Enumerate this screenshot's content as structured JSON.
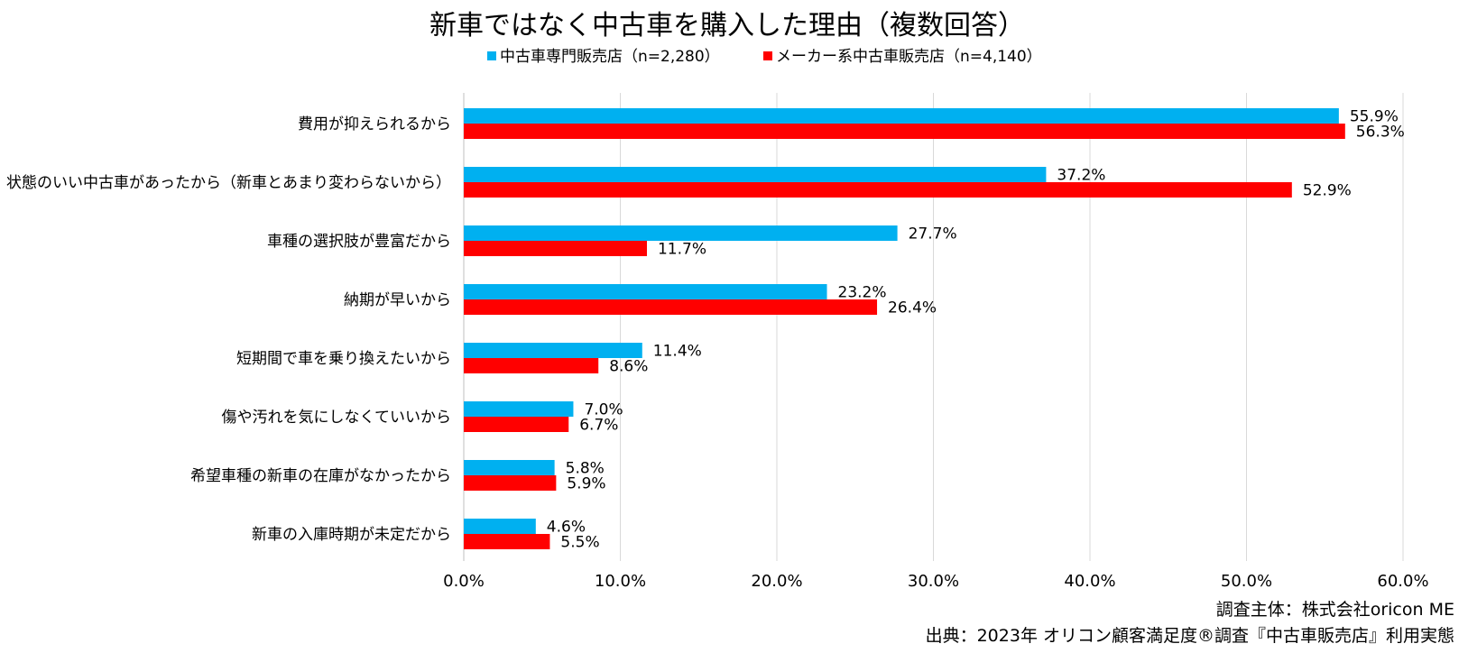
{
  "chart_data": {
    "type": "bar",
    "orientation": "horizontal",
    "title": "新車ではなく中古車を購入した理由（複数回答）",
    "categories": [
      "費用が抑えられるから",
      "状態のいい中古車があったから（新車とあまり変わらないから）",
      "車種の選択肢が豊富だから",
      "納期が早いから",
      "短期間で車を乗り換えたいから",
      "傷や汚れを気にしなくていいから",
      "希望車種の新車の在庫がなかったから",
      "新車の入庫時期が未定だから"
    ],
    "series": [
      {
        "name": "中古車専門販売店（n=2,280）",
        "color": "#00b0f0",
        "values": [
          55.9,
          37.2,
          27.7,
          23.2,
          11.4,
          7.0,
          5.8,
          4.6
        ],
        "labels": [
          "55.9%",
          "37.2%",
          "27.7%",
          "23.2%",
          "11.4%",
          "7.0%",
          "5.8%",
          "4.6%"
        ]
      },
      {
        "name": "メーカー系中古車販売店（n=4,140）",
        "color": "#ff0000",
        "values": [
          56.3,
          52.9,
          11.7,
          26.4,
          8.6,
          6.7,
          5.9,
          5.5
        ],
        "labels": [
          "56.3%",
          "52.9%",
          "11.7%",
          "26.4%",
          "8.6%",
          "6.7%",
          "5.9%",
          "5.5%"
        ]
      }
    ],
    "xlim": [
      0,
      60
    ],
    "xticks": [
      "0.0%",
      "10.0%",
      "20.0%",
      "30.0%",
      "40.0%",
      "50.0%",
      "60.0%"
    ],
    "xlabel": "",
    "ylabel": "",
    "grid": true,
    "legend_position": "top"
  },
  "footer": {
    "survey_entity": "調査主体：株式会社oricon ME",
    "source": "出典：2023年 オリコン顧客満足度®調査『中古車販売店』利用実態"
  }
}
